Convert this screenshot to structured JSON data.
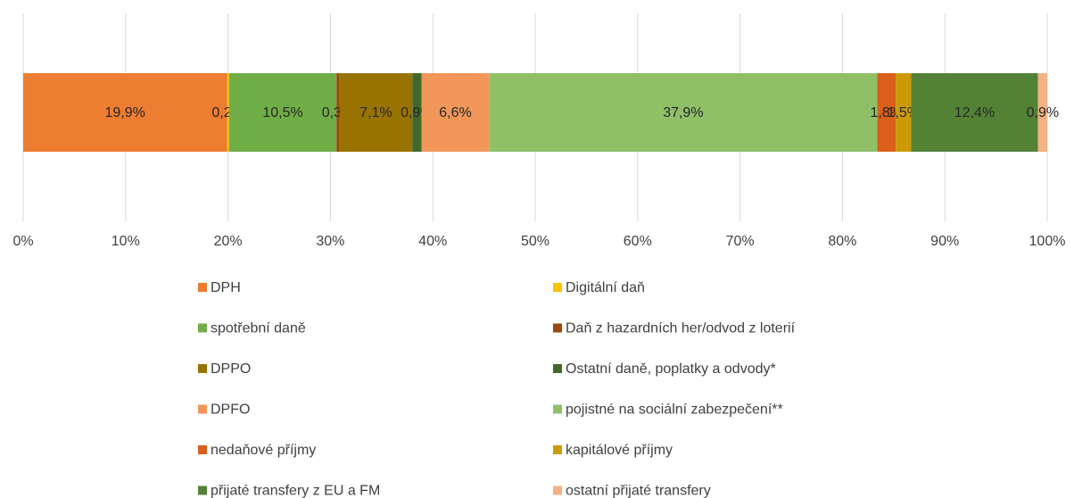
{
  "chart_data": {
    "type": "stacked-bar-horizontal",
    "categories": [
      null
    ],
    "series": [
      {
        "name": "DPH",
        "color": "#ED7D31",
        "values": [
          19.9
        ],
        "value_labels": [
          "19,9%"
        ]
      },
      {
        "name": "Digitální daň",
        "color": "#FFC000",
        "values": [
          0.2
        ],
        "value_labels": [
          "0,2%"
        ]
      },
      {
        "name": "spotřební daně",
        "color": "#70AD47",
        "values": [
          10.5
        ],
        "value_labels": [
          "10,5%"
        ]
      },
      {
        "name": "Daň z hazardních her/odvod z loterií",
        "color": "#9E480E",
        "values": [
          0.3
        ],
        "value_labels": [
          "0,3%"
        ]
      },
      {
        "name": "DPPO",
        "color": "#997300",
        "values": [
          7.1
        ],
        "value_labels": [
          "7,1%"
        ]
      },
      {
        "name": "Ostatní daně, poplatky a odvody*",
        "color": "#43682B",
        "values": [
          0.9
        ],
        "value_labels": [
          "0,9%"
        ]
      },
      {
        "name": "DPFO",
        "color": "#F1975A",
        "values": [
          6.6
        ],
        "value_labels": [
          "6,6%"
        ]
      },
      {
        "name": "pojistné na sociální zabezpečení**",
        "color": "#8FC068",
        "values": [
          37.9
        ],
        "value_labels": [
          "37,9%"
        ]
      },
      {
        "name": "nedaňové příjmy",
        "color": "#D8601A",
        "values": [
          1.8
        ],
        "value_labels": [
          "1,8%"
        ]
      },
      {
        "name": "kapitálové příjmy",
        "color": "#CC9A06",
        "values": [
          1.5
        ],
        "value_labels": [
          "1,5%"
        ]
      },
      {
        "name": "přijaté transfery z EU a FM",
        "color": "#548235",
        "values": [
          12.4
        ],
        "value_labels": [
          "12,4%"
        ]
      },
      {
        "name": "ostatní přijaté transfery",
        "color": "#F4B183",
        "values": [
          0.9
        ],
        "value_labels": [
          "0,9%"
        ]
      }
    ],
    "xlim": [
      0,
      100
    ],
    "xticks": [
      {
        "value": 0,
        "label": "0%"
      },
      {
        "value": 10,
        "label": "10%"
      },
      {
        "value": 20,
        "label": "20%"
      },
      {
        "value": 30,
        "label": "30%"
      },
      {
        "value": 40,
        "label": "40%"
      },
      {
        "value": 50,
        "label": "50%"
      },
      {
        "value": 60,
        "label": "60%"
      },
      {
        "value": 70,
        "label": "70%"
      },
      {
        "value": 80,
        "label": "80%"
      },
      {
        "value": 90,
        "label": "90%"
      },
      {
        "value": 100,
        "label": "100%"
      }
    ],
    "grid": true,
    "legend": "bottom"
  }
}
